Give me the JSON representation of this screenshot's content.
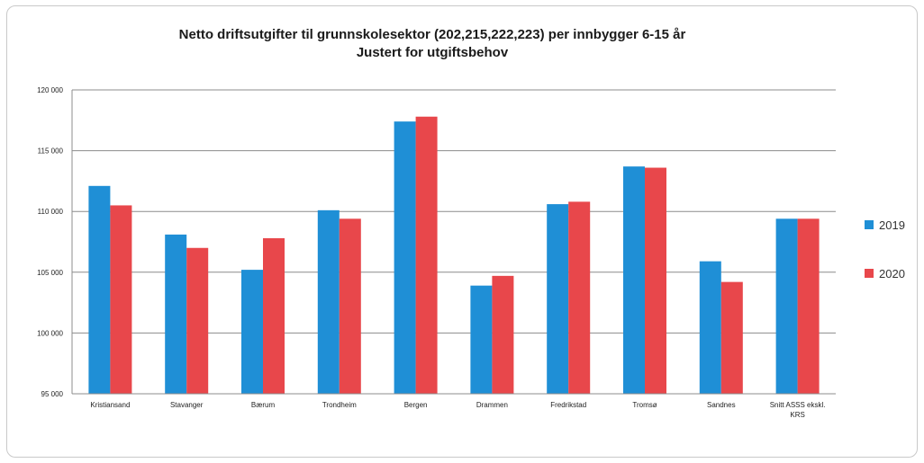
{
  "chart_data": {
    "type": "bar",
    "title": "Netto driftsutgifter til grunnskolesektor (202,215,222,223) per innbygger 6-15 år",
    "subtitle": "Justert for utgiftsbehov",
    "categories": [
      "Kristiansand",
      "Stavanger",
      "Bærum",
      "Trondheim",
      "Bergen",
      "Drammen",
      "Fredrikstad",
      "Tromsø",
      "Sandnes",
      "Snitt ASSS ekskl. KRS"
    ],
    "series": [
      {
        "name": "2019",
        "color": "#1f8fd6",
        "values": [
          112100,
          108100,
          105200,
          110100,
          117400,
          103900,
          110600,
          113700,
          105900,
          109400
        ]
      },
      {
        "name": "2020",
        "color": "#e8474b",
        "values": [
          110500,
          107000,
          107800,
          109400,
          117800,
          104700,
          110800,
          113600,
          104200,
          109400
        ]
      }
    ],
    "ylim": [
      95000,
      120000
    ],
    "yticks": [
      95000,
      100000,
      105000,
      110000,
      115000,
      120000
    ],
    "ytick_labels": [
      "95 000",
      "100 000",
      "105 000",
      "110 000",
      "115 000",
      "120 000"
    ],
    "xlabel": "",
    "ylabel": "",
    "grid": true,
    "legend_position": "right"
  }
}
